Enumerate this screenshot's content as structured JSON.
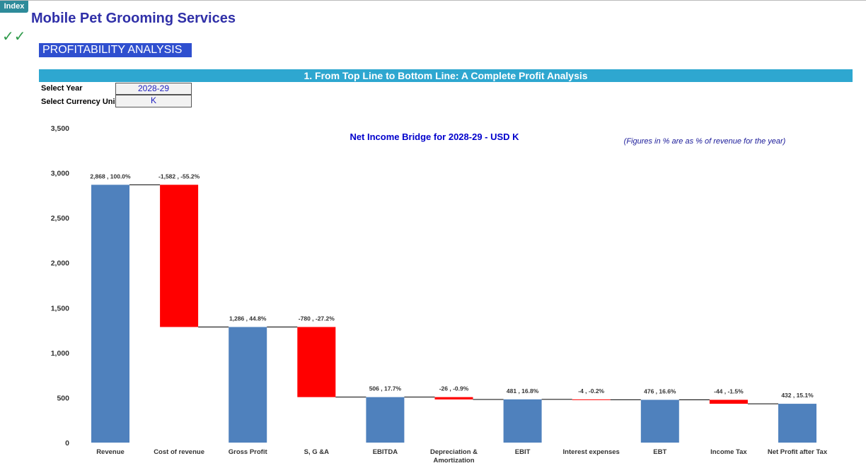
{
  "header": {
    "index": "Index",
    "title": "Mobile Pet Grooming Services",
    "checks": "✓✓",
    "section": "PROFITABILITY ANALYSIS",
    "subsection": "1. From Top Line to Bottom Line: A Complete Profit Analysis",
    "controls": [
      {
        "label": "Select Year",
        "value": "2028-29"
      },
      {
        "label": "Select Currency Uni",
        "value": "K"
      }
    ]
  },
  "chart_data": {
    "type": "waterfall",
    "title": "Net Income Bridge for 2028-29 - USD K",
    "note": "(Figures in % are as % of revenue for the year)",
    "categories": [
      "Revenue",
      "Cost of revenue",
      "Gross Profit",
      "S, G &A",
      "EBITDA",
      "Depreciation & Amortization",
      "EBIT",
      "Interest expenses",
      "EBT",
      "Income Tax",
      "Net Profit after Tax"
    ],
    "values": [
      2868,
      -1582,
      1286,
      -780,
      506,
      -26,
      481,
      -4,
      476,
      -44,
      432
    ],
    "value_labels": [
      "2,868 , 100.0%",
      "-1,582 , -55.2%",
      "1,286 , 44.8%",
      "-780 , -27.2%",
      "506 , 17.7%",
      "-26 , -0.9%",
      "481 , 16.8%",
      "-4 , -0.2%",
      "476 , 16.6%",
      "-44 , -1.5%",
      "432 , 15.1%"
    ],
    "kinds": [
      "total",
      "delta",
      "total",
      "delta",
      "total",
      "delta",
      "total",
      "delta",
      "total",
      "delta",
      "total"
    ],
    "colors": {
      "total": "#4f81bd",
      "delta": "#ff0000"
    },
    "ylim": [
      0,
      3500
    ],
    "yticks": [
      0,
      500,
      {
        "value": 1000,
        "label": "1,000"
      },
      {
        "value": 1500,
        "label": "1,500"
      },
      {
        "value": 2000,
        "label": "2,000"
      },
      {
        "value": 2500,
        "label": "2,500"
      },
      {
        "value": 3000,
        "label": "3,000"
      },
      {
        "value": 3500,
        "label": "3,500"
      }
    ],
    "grid": false
  }
}
